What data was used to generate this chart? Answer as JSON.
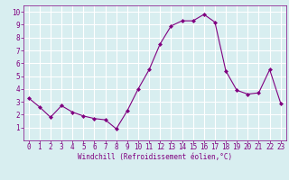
{
  "x": [
    0,
    1,
    2,
    3,
    4,
    5,
    6,
    7,
    8,
    9,
    10,
    11,
    12,
    13,
    14,
    15,
    16,
    17,
    18,
    19,
    20,
    21,
    22,
    23
  ],
  "y": [
    3.3,
    2.6,
    1.8,
    2.7,
    2.2,
    1.9,
    1.7,
    1.6,
    0.9,
    2.3,
    4.0,
    5.5,
    7.5,
    8.9,
    9.3,
    9.3,
    9.8,
    9.2,
    5.4,
    3.9,
    3.6,
    3.7,
    5.5,
    2.9
  ],
  "line_color": "#800080",
  "marker": "D",
  "marker_size": 2.0,
  "bg_color": "#d8eef0",
  "grid_color": "#ffffff",
  "xlabel": "Windchill (Refroidissement éolien,°C)",
  "xlabel_color": "#800080",
  "tick_color": "#800080",
  "spine_color": "#800080",
  "xlim": [
    -0.5,
    23.5
  ],
  "ylim": [
    0,
    10.5
  ],
  "xticks": [
    0,
    1,
    2,
    3,
    4,
    5,
    6,
    7,
    8,
    9,
    10,
    11,
    12,
    13,
    14,
    15,
    16,
    17,
    18,
    19,
    20,
    21,
    22,
    23
  ],
  "yticks": [
    1,
    2,
    3,
    4,
    5,
    6,
    7,
    8,
    9,
    10
  ],
  "xlabel_fontsize": 5.5,
  "tick_fontsize": 5.5,
  "linewidth": 0.8
}
